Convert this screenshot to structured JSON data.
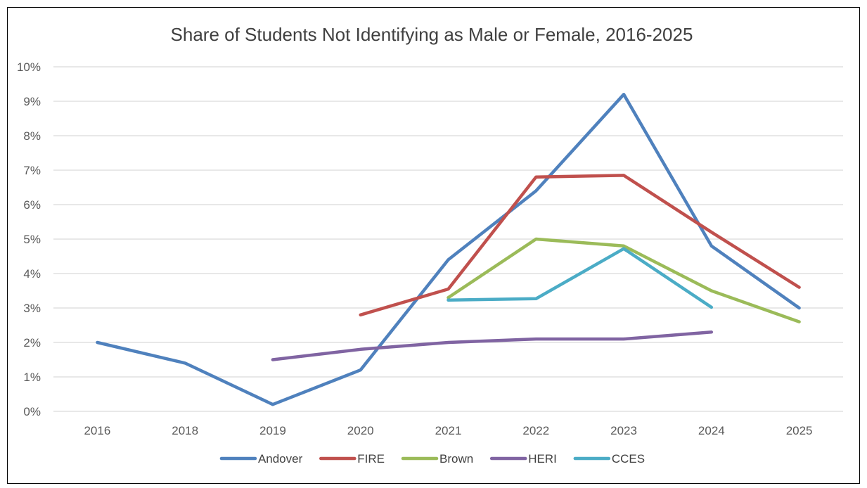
{
  "chart_data": {
    "type": "line",
    "title": "Share of Students Not Identifying as Male or Female, 2016-2025",
    "xlabel": "",
    "ylabel": "",
    "categories": [
      "2016",
      "2018",
      "2019",
      "2020",
      "2021",
      "2022",
      "2023",
      "2024",
      "2025"
    ],
    "ylim": [
      0,
      10
    ],
    "y_ticks": [
      "0%",
      "1%",
      "2%",
      "3%",
      "4%",
      "5%",
      "6%",
      "7%",
      "8%",
      "9%",
      "10%"
    ],
    "grid": true,
    "legend_position": "bottom",
    "series": [
      {
        "name": "Andover",
        "color": "#4f81bd",
        "values": [
          2.0,
          1.4,
          0.2,
          1.2,
          4.4,
          6.4,
          9.2,
          4.8,
          3.0
        ]
      },
      {
        "name": "FIRE",
        "color": "#c0504d",
        "values": [
          null,
          null,
          null,
          2.8,
          3.55,
          6.8,
          6.85,
          5.2,
          3.6
        ]
      },
      {
        "name": "Brown",
        "color": "#9bbb59",
        "values": [
          null,
          null,
          null,
          null,
          3.3,
          5.0,
          4.8,
          3.5,
          2.6
        ]
      },
      {
        "name": "HERI",
        "color": "#8064a2",
        "values": [
          null,
          null,
          1.5,
          1.8,
          2.0,
          2.1,
          2.1,
          2.3,
          null
        ]
      },
      {
        "name": "CCES",
        "color": "#4bacc6",
        "values": [
          null,
          null,
          null,
          null,
          3.23,
          3.27,
          4.72,
          3.02,
          null
        ]
      }
    ]
  }
}
